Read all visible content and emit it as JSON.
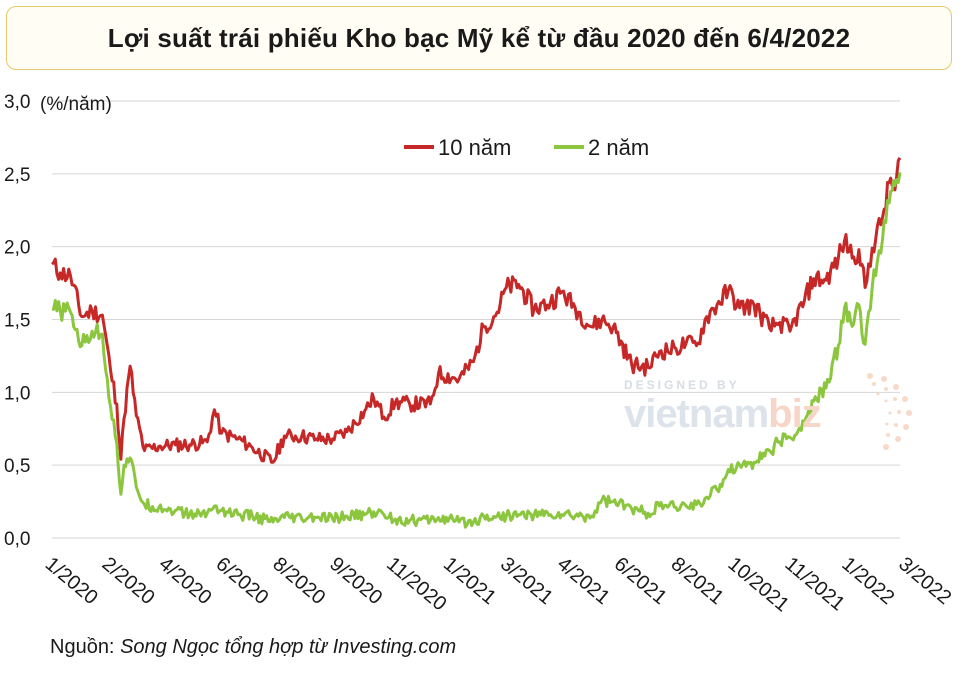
{
  "title": "Lợi suất trái phiếu Kho bạc Mỹ kể từ đầu 2020 đến 6/4/2022",
  "source_label": "Nguồn:",
  "source_text": "Song Ngọc tổng hợp từ Investing.com",
  "watermark": {
    "top": "DESIGNED BY",
    "word_main": "vietnam",
    "word_accent": "biz"
  },
  "colors": {
    "ten_year": "#c62828",
    "two_year": "#8cc63f",
    "grid": "#d6d6d6",
    "title_border": "#e3c96a"
  },
  "chart_data": {
    "type": "line",
    "title": "Lợi suất trái phiếu Kho bạc Mỹ kể từ đầu 2020 đến 6/4/2022",
    "unit_label": "(%/năm)",
    "xlabel": "",
    "ylabel": "",
    "ylim": [
      0,
      3
    ],
    "yticks": [
      "0,0",
      "0,5",
      "1,0",
      "1,5",
      "2,0",
      "2,5",
      "3,0"
    ],
    "xticks": [
      "1/2020",
      "2/2020",
      "4/2020",
      "6/2020",
      "8/2020",
      "9/2020",
      "11/2020",
      "1/2021",
      "3/2021",
      "4/2021",
      "6/2021",
      "8/2021",
      "10/2021",
      "11/2021",
      "1/2022",
      "3/2022"
    ],
    "grid": true,
    "legend_position": "top-center",
    "x_range": [
      "2020-01-02",
      "2022-04-06"
    ],
    "series": [
      {
        "name": "10 năm",
        "color": "#c62828",
        "points": [
          [
            "2020-01-02",
            1.88
          ],
          [
            "2020-01-10",
            1.82
          ],
          [
            "2020-01-20",
            1.8
          ],
          [
            "2020-01-31",
            1.52
          ],
          [
            "2020-02-10",
            1.56
          ],
          [
            "2020-02-20",
            1.53
          ],
          [
            "2020-02-28",
            1.15
          ],
          [
            "2020-03-05",
            0.92
          ],
          [
            "2020-03-09",
            0.54
          ],
          [
            "2020-03-12",
            0.82
          ],
          [
            "2020-03-18",
            1.18
          ],
          [
            "2020-03-24",
            0.84
          ],
          [
            "2020-04-01",
            0.6
          ],
          [
            "2020-04-15",
            0.63
          ],
          [
            "2020-05-01",
            0.64
          ],
          [
            "2020-05-15",
            0.64
          ],
          [
            "2020-06-01",
            0.66
          ],
          [
            "2020-06-08",
            0.88
          ],
          [
            "2020-06-15",
            0.72
          ],
          [
            "2020-07-01",
            0.68
          ],
          [
            "2020-07-15",
            0.62
          ],
          [
            "2020-08-04",
            0.52
          ],
          [
            "2020-08-15",
            0.7
          ],
          [
            "2020-09-01",
            0.7
          ],
          [
            "2020-09-15",
            0.68
          ],
          [
            "2020-10-01",
            0.68
          ],
          [
            "2020-10-15",
            0.73
          ],
          [
            "2020-11-01",
            0.87
          ],
          [
            "2020-11-10",
            0.96
          ],
          [
            "2020-11-20",
            0.83
          ],
          [
            "2020-12-01",
            0.93
          ],
          [
            "2020-12-15",
            0.92
          ],
          [
            "2021-01-04",
            0.92
          ],
          [
            "2021-01-12",
            1.13
          ],
          [
            "2021-02-01",
            1.09
          ],
          [
            "2021-02-15",
            1.21
          ],
          [
            "2021-02-25",
            1.45
          ],
          [
            "2021-03-10",
            1.55
          ],
          [
            "2021-03-19",
            1.72
          ],
          [
            "2021-03-31",
            1.74
          ],
          [
            "2021-04-15",
            1.57
          ],
          [
            "2021-05-01",
            1.62
          ],
          [
            "2021-05-12",
            1.69
          ],
          [
            "2021-05-25",
            1.58
          ],
          [
            "2021-06-10",
            1.45
          ],
          [
            "2021-06-20",
            1.5
          ],
          [
            "2021-07-01",
            1.45
          ],
          [
            "2021-07-19",
            1.19
          ],
          [
            "2021-08-04",
            1.17
          ],
          [
            "2021-08-15",
            1.28
          ],
          [
            "2021-08-31",
            1.3
          ],
          [
            "2021-09-10",
            1.34
          ],
          [
            "2021-09-20",
            1.32
          ],
          [
            "2021-09-30",
            1.52
          ],
          [
            "2021-10-10",
            1.6
          ],
          [
            "2021-10-21",
            1.7
          ],
          [
            "2021-11-01",
            1.58
          ],
          [
            "2021-11-15",
            1.6
          ],
          [
            "2021-11-30",
            1.44
          ],
          [
            "2021-12-10",
            1.48
          ],
          [
            "2021-12-20",
            1.42
          ],
          [
            "2022-01-03",
            1.63
          ],
          [
            "2022-01-12",
            1.78
          ],
          [
            "2022-01-24",
            1.77
          ],
          [
            "2022-02-05",
            1.92
          ],
          [
            "2022-02-11",
            2.04
          ],
          [
            "2022-02-20",
            1.93
          ],
          [
            "2022-02-25",
            1.98
          ],
          [
            "2022-03-03",
            1.72
          ],
          [
            "2022-03-10",
            1.99
          ],
          [
            "2022-03-20",
            2.2
          ],
          [
            "2022-03-28",
            2.47
          ],
          [
            "2022-04-01",
            2.39
          ],
          [
            "2022-04-06",
            2.61
          ]
        ]
      },
      {
        "name": "2 năm",
        "color": "#8cc63f",
        "points": [
          [
            "2020-01-02",
            1.57
          ],
          [
            "2020-01-10",
            1.56
          ],
          [
            "2020-01-20",
            1.55
          ],
          [
            "2020-01-31",
            1.32
          ],
          [
            "2020-02-10",
            1.42
          ],
          [
            "2020-02-20",
            1.4
          ],
          [
            "2020-02-28",
            0.9
          ],
          [
            "2020-03-05",
            0.65
          ],
          [
            "2020-03-09",
            0.3
          ],
          [
            "2020-03-12",
            0.5
          ],
          [
            "2020-03-18",
            0.55
          ],
          [
            "2020-03-24",
            0.35
          ],
          [
            "2020-04-01",
            0.23
          ],
          [
            "2020-04-15",
            0.21
          ],
          [
            "2020-05-01",
            0.19
          ],
          [
            "2020-05-15",
            0.16
          ],
          [
            "2020-06-01",
            0.17
          ],
          [
            "2020-06-08",
            0.22
          ],
          [
            "2020-06-15",
            0.19
          ],
          [
            "2020-07-01",
            0.16
          ],
          [
            "2020-07-15",
            0.15
          ],
          [
            "2020-08-04",
            0.11
          ],
          [
            "2020-08-15",
            0.14
          ],
          [
            "2020-09-01",
            0.13
          ],
          [
            "2020-09-15",
            0.14
          ],
          [
            "2020-10-01",
            0.13
          ],
          [
            "2020-10-15",
            0.15
          ],
          [
            "2020-11-01",
            0.16
          ],
          [
            "2020-11-10",
            0.18
          ],
          [
            "2020-11-20",
            0.16
          ],
          [
            "2020-12-01",
            0.13
          ],
          [
            "2020-12-15",
            0.12
          ],
          [
            "2021-01-04",
            0.12
          ],
          [
            "2021-01-12",
            0.14
          ],
          [
            "2021-02-01",
            0.11
          ],
          [
            "2021-02-15",
            0.11
          ],
          [
            "2021-02-25",
            0.15
          ],
          [
            "2021-03-10",
            0.15
          ],
          [
            "2021-03-19",
            0.15
          ],
          [
            "2021-03-31",
            0.16
          ],
          [
            "2021-04-15",
            0.16
          ],
          [
            "2021-05-01",
            0.16
          ],
          [
            "2021-05-12",
            0.16
          ],
          [
            "2021-05-25",
            0.15
          ],
          [
            "2021-06-10",
            0.15
          ],
          [
            "2021-06-20",
            0.26
          ],
          [
            "2021-07-01",
            0.25
          ],
          [
            "2021-07-19",
            0.2
          ],
          [
            "2021-08-04",
            0.17
          ],
          [
            "2021-08-15",
            0.22
          ],
          [
            "2021-08-31",
            0.21
          ],
          [
            "2021-09-10",
            0.22
          ],
          [
            "2021-09-20",
            0.23
          ],
          [
            "2021-09-30",
            0.28
          ],
          [
            "2021-10-10",
            0.33
          ],
          [
            "2021-10-21",
            0.47
          ],
          [
            "2021-11-01",
            0.5
          ],
          [
            "2021-11-15",
            0.52
          ],
          [
            "2021-11-30",
            0.6
          ],
          [
            "2021-12-10",
            0.66
          ],
          [
            "2021-12-20",
            0.69
          ],
          [
            "2022-01-03",
            0.78
          ],
          [
            "2022-01-12",
            0.94
          ],
          [
            "2022-01-24",
            1.03
          ],
          [
            "2022-02-05",
            1.32
          ],
          [
            "2022-02-11",
            1.58
          ],
          [
            "2022-02-20",
            1.47
          ],
          [
            "2022-02-25",
            1.6
          ],
          [
            "2022-03-03",
            1.33
          ],
          [
            "2022-03-10",
            1.72
          ],
          [
            "2022-03-20",
            2.05
          ],
          [
            "2022-03-28",
            2.38
          ],
          [
            "2022-04-01",
            2.42
          ],
          [
            "2022-04-06",
            2.51
          ]
        ]
      }
    ]
  }
}
